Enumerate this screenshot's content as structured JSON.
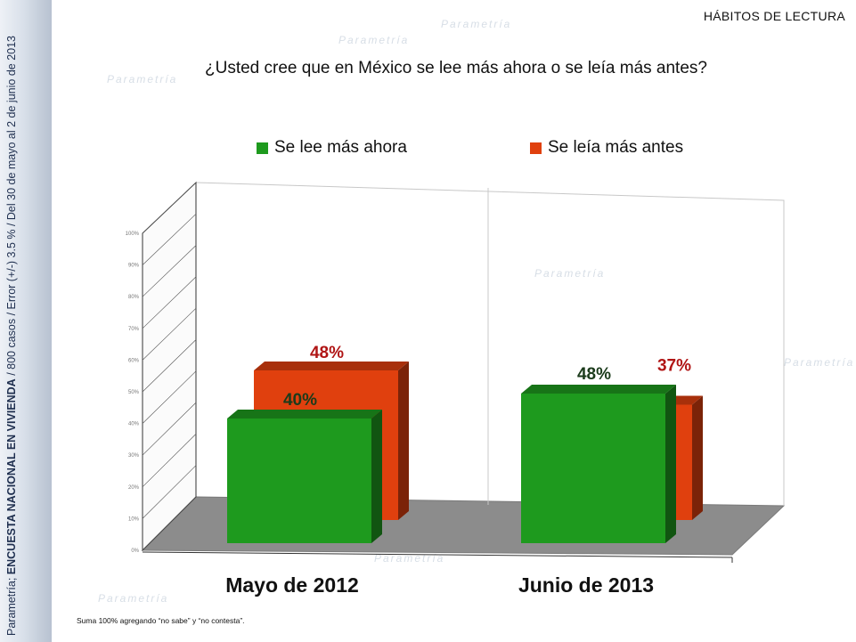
{
  "header": {
    "section": "HÁBITOS DE LECTURA",
    "question": "¿Usted cree que en México se lee más ahora o se leía más antes?"
  },
  "sidebar": {
    "source": "Parametría; ",
    "survey_name": "ENCUESTA NACIONAL EN VIVIENDA",
    "details": " / 800 casos / Error (+/-) 3.5 % / Del 30 de mayo al 2  de junio de 2013"
  },
  "watermark_text": "Parametría",
  "footnote": "Suma 100%  agregando “no sabe” y “no contesta”.",
  "chart_data": {
    "type": "bar",
    "categories": [
      "Mayo de 2012",
      "Junio de 2013"
    ],
    "series": [
      {
        "name": "Se lee más ahora",
        "values": [
          40,
          48
        ],
        "labels": [
          "40%",
          "48%"
        ],
        "color": "#1e9a1e"
      },
      {
        "name": "Se leía más antes",
        "values": [
          48,
          37
        ],
        "labels": [
          "48%",
          "37%"
        ],
        "color": "#e0400e"
      }
    ],
    "label_colors": [
      "#1b3b1b",
      "#b01515"
    ],
    "yticks": [
      "0%",
      "10%",
      "20%",
      "30%",
      "40%",
      "50%",
      "60%",
      "70%",
      "80%",
      "90%",
      "100%"
    ],
    "ylim": [
      0,
      100
    ],
    "legend_position": "top"
  }
}
